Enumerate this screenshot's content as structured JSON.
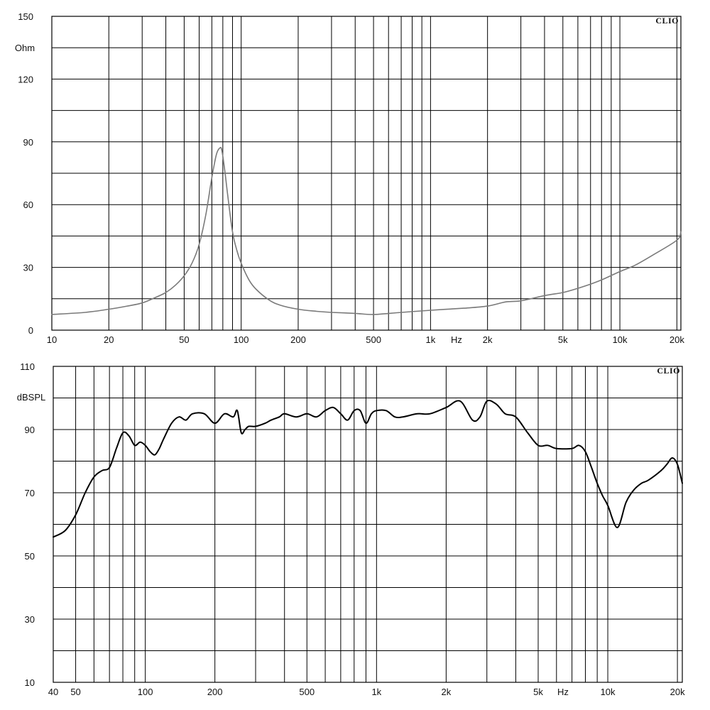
{
  "chart_data": [
    {
      "type": "line",
      "brand": "CLIO",
      "ylabel": "Ohm",
      "xlabel": "Hz",
      "x_scale": "log",
      "xlim": [
        10,
        21000
      ],
      "ylim": [
        0,
        150
      ],
      "grid": true,
      "y_ticks": [
        {
          "value": 0,
          "label": "0"
        },
        {
          "value": 30,
          "label": "30"
        },
        {
          "value": 60,
          "label": "60"
        },
        {
          "value": 90,
          "label": "90"
        },
        {
          "value": 120,
          "label": "120"
        },
        {
          "value": 150,
          "label": "150"
        }
      ],
      "y_grid_minor": [
        15,
        45,
        75,
        105,
        135
      ],
      "x_ticks": [
        {
          "value": 10,
          "label": "10"
        },
        {
          "value": 20,
          "label": "20"
        },
        {
          "value": 50,
          "label": "50"
        },
        {
          "value": 100,
          "label": "100"
        },
        {
          "value": 200,
          "label": "200"
        },
        {
          "value": 500,
          "label": "500"
        },
        {
          "value": 1000,
          "label": "1k"
        },
        {
          "value": 2000,
          "label": "2k"
        },
        {
          "value": 5000,
          "label": "5k"
        },
        {
          "value": 10000,
          "label": "10k"
        },
        {
          "value": 20000,
          "label": "20k"
        }
      ],
      "x_gridlines": [
        10,
        20,
        30,
        40,
        50,
        60,
        70,
        80,
        90,
        100,
        200,
        300,
        400,
        500,
        600,
        700,
        800,
        900,
        1000,
        2000,
        3000,
        4000,
        5000,
        6000,
        7000,
        8000,
        9000,
        10000,
        20000
      ],
      "series_color": "#7a7a7a",
      "series": [
        {
          "x": [
            10,
            15,
            20,
            25,
            30,
            35,
            40,
            45,
            50,
            55,
            60,
            65,
            70,
            74,
            77,
            79,
            82,
            85,
            90,
            95,
            100,
            110,
            120,
            140,
            160,
            200,
            250,
            300,
            400,
            500,
            700,
            1000,
            1500,
            2000,
            2500,
            3000,
            4000,
            5000,
            6000,
            7000,
            8000,
            10000,
            12000,
            15000,
            20000,
            21000
          ],
          "y": [
            7.5,
            8.5,
            10,
            11.5,
            13,
            15.5,
            18,
            21.5,
            26,
            32,
            41,
            55,
            73,
            84,
            87,
            86,
            76,
            64,
            47,
            38,
            32,
            24,
            19.5,
            14.5,
            12,
            10,
            9,
            8.5,
            8,
            7.5,
            8.5,
            9.5,
            10.5,
            11.5,
            13.5,
            14,
            16.5,
            18,
            20,
            22,
            24,
            28,
            31,
            36,
            43,
            47
          ]
        }
      ]
    },
    {
      "type": "line",
      "brand": "CLIO",
      "ylabel": "dBSPL",
      "xlabel": "Hz",
      "x_scale": "log",
      "xlim": [
        40,
        21000
      ],
      "ylim": [
        10,
        110
      ],
      "grid": true,
      "y_ticks": [
        {
          "value": 10,
          "label": "10"
        },
        {
          "value": 30,
          "label": "30"
        },
        {
          "value": 50,
          "label": "50"
        },
        {
          "value": 70,
          "label": "70"
        },
        {
          "value": 90,
          "label": "90"
        },
        {
          "value": 110,
          "label": "110"
        }
      ],
      "y_grid_minor": [
        20,
        40,
        60,
        80,
        100
      ],
      "x_ticks": [
        {
          "value": 40,
          "label": "40"
        },
        {
          "value": 50,
          "label": "50"
        },
        {
          "value": 100,
          "label": "100"
        },
        {
          "value": 200,
          "label": "200"
        },
        {
          "value": 500,
          "label": "500"
        },
        {
          "value": 1000,
          "label": "1k"
        },
        {
          "value": 2000,
          "label": "2k"
        },
        {
          "value": 5000,
          "label": "5k"
        },
        {
          "value": 10000,
          "label": "10k"
        },
        {
          "value": 20000,
          "label": "20k"
        }
      ],
      "x_gridlines": [
        50,
        60,
        70,
        80,
        90,
        100,
        200,
        300,
        400,
        500,
        600,
        700,
        800,
        900,
        1000,
        2000,
        3000,
        4000,
        5000,
        6000,
        7000,
        8000,
        9000,
        10000,
        20000
      ],
      "series_color": "#000000",
      "series": [
        {
          "x": [
            40,
            45,
            50,
            55,
            60,
            65,
            70,
            75,
            80,
            85,
            90,
            95,
            100,
            105,
            110,
            115,
            120,
            130,
            140,
            150,
            160,
            180,
            200,
            220,
            240,
            250,
            260,
            270,
            280,
            300,
            330,
            350,
            380,
            400,
            450,
            500,
            550,
            600,
            650,
            700,
            750,
            800,
            850,
            900,
            950,
            1000,
            1100,
            1200,
            1300,
            1500,
            1700,
            2000,
            2300,
            2600,
            2800,
            3000,
            3300,
            3600,
            4000,
            4500,
            5000,
            5500,
            6000,
            7000,
            7500,
            8000,
            8500,
            9000,
            9500,
            10000,
            11000,
            12000,
            13000,
            14000,
            15000,
            17000,
            18000,
            19000,
            20000,
            21000
          ],
          "y": [
            56,
            58,
            63,
            70,
            75,
            77,
            78,
            84,
            89,
            88,
            85,
            86,
            85,
            83,
            82,
            84,
            87,
            92,
            94,
            93,
            95,
            95,
            92,
            95,
            94,
            96,
            89,
            90,
            91,
            91,
            92,
            93,
            94,
            95,
            94,
            95,
            94,
            96,
            97,
            95,
            93,
            96,
            96,
            92,
            95,
            96,
            96,
            94,
            94,
            95,
            95,
            97,
            99,
            93,
            94,
            99,
            98,
            95,
            94,
            89,
            85,
            85,
            84,
            84,
            85,
            83,
            78,
            73,
            69,
            66,
            59,
            67,
            71,
            73,
            74,
            77,
            79,
            81,
            79,
            73
          ]
        }
      ]
    }
  ]
}
